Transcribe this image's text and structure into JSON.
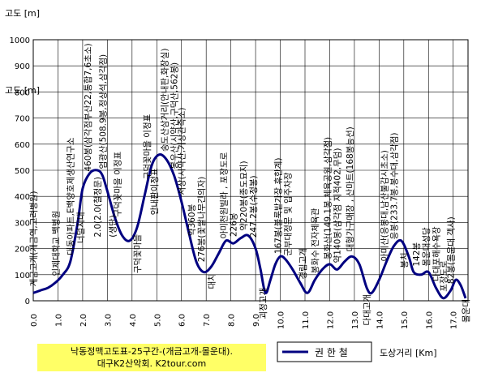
{
  "chart_data": {
    "type": "line",
    "title": "",
    "ylabel": "고도 [m]",
    "xlabel": "도상거리 [Km]",
    "ylim": [
      0,
      1000
    ],
    "yticks": [
      0,
      100,
      200,
      300,
      400,
      500,
      600,
      700,
      800,
      900,
      1000
    ],
    "yticks_text": [
      "0",
      "100",
      "200",
      "300",
      "400",
      "500",
      "600",
      "700",
      "800",
      "900",
      "1000"
    ],
    "xlim": [
      0,
      17.6
    ],
    "xticks": [
      0,
      1,
      2,
      3,
      4,
      5,
      6,
      7,
      8,
      9,
      10,
      11,
      12,
      13,
      14,
      15,
      16,
      17
    ],
    "xticks_text": [
      "0.0",
      "1.0",
      "2.0",
      "3.0",
      "4.0",
      "5.0",
      "6.0",
      "7.0",
      "8.0",
      "9.0",
      "10.0",
      "11.0",
      "12.0",
      "13.0",
      "14.0",
      "15.0",
      "16.0",
      "17.0"
    ],
    "grid": true,
    "line_color": "#000080",
    "series": [
      {
        "name": "권 한 철",
        "x": [
          0.0,
          0.3,
          0.6,
          0.9,
          1.2,
          1.5,
          1.8,
          2.0,
          2.3,
          2.6,
          2.8,
          3.0,
          3.3,
          3.6,
          3.9,
          4.2,
          4.5,
          4.8,
          5.1,
          5.4,
          5.7,
          6.0,
          6.3,
          6.6,
          6.9,
          7.2,
          7.5,
          7.8,
          8.1,
          8.4,
          8.7,
          9.0,
          9.2,
          9.4,
          9.6,
          9.8,
          10.0,
          10.2,
          10.5,
          10.8,
          11.1,
          11.4,
          11.7,
          12.0,
          12.3,
          12.6,
          12.9,
          13.2,
          13.5,
          13.7,
          14.0,
          14.3,
          14.6,
          14.9,
          15.2,
          15.4,
          15.7,
          16.0,
          16.3,
          16.6,
          16.9,
          17.1,
          17.3,
          17.5
        ],
        "y": [
          30,
          40,
          50,
          70,
          100,
          150,
          300,
          430,
          490,
          500,
          480,
          420,
          320,
          250,
          230,
          280,
          400,
          520,
          560,
          540,
          480,
          380,
          260,
          150,
          110,
          130,
          180,
          230,
          220,
          240,
          250,
          200,
          120,
          30,
          80,
          140,
          170,
          160,
          120,
          70,
          30,
          80,
          120,
          140,
          120,
          150,
          170,
          140,
          50,
          30,
          80,
          150,
          210,
          230,
          170,
          110,
          100,
          110,
          50,
          10,
          40,
          80,
          60,
          10
        ]
      }
    ],
    "legend": {
      "placement": "bottom-right"
    },
    "annotations": [
      {
        "x": 0.0,
        "text": "계금고개(개금역,고려병원)",
        "side": "up"
      },
      {
        "x": 0.9,
        "text": "인제대학교 백병원",
        "side": "up"
      },
      {
        "x": 1.5,
        "text": "대동아파트,E백양호제생산연구소",
        "side": "up"
      },
      {
        "x": 1.9,
        "text": "너덜지대",
        "side": "down"
      },
      {
        "x": 2.2,
        "text": "460봉(삼각점부산22,통합7,6초소)",
        "side": "up"
      },
      {
        "x": 2.6,
        "text": "2.0(2.0(철정문)",
        "side": "down"
      },
      {
        "x": 2.8,
        "text": "엄광산(508.9봉,정상석,삼각점)",
        "side": "up"
      },
      {
        "x": 3.2,
        "text": "(생단)",
        "side": "down"
      },
      {
        "x": 3.4,
        "text": "구덕꽃마을 이정표",
        "side": "up"
      },
      {
        "x": 4.2,
        "text": "구덕꽃마을",
        "side": "down"
      },
      {
        "x": 4.6,
        "text": "구덕꽃마을 이정표",
        "side": "up"
      },
      {
        "x": 4.9,
        "text": "안내판이정표",
        "side": "down"
      },
      {
        "x": 5.3,
        "text": "송도산삼거리(안내판,화장실)",
        "side": "up"
      },
      {
        "x": 5.7,
        "text": "봉우산(시약산,구덕산,562봉)",
        "side": "up"
      },
      {
        "x": 6.0,
        "text": "서상(시약산,기상관측소)",
        "side": "up"
      },
      {
        "x": 6.4,
        "text": "약360봉",
        "side": "up"
      },
      {
        "x": 6.8,
        "text": "276봉(꽃쌀나무긴의자)",
        "side": "up"
      },
      {
        "x": 7.2,
        "text": "대치",
        "side": "down"
      },
      {
        "x": 7.7,
        "text": "아미천원빌라 , 포장도로",
        "side": "up"
      },
      {
        "x": 8.1,
        "text": "226봉",
        "side": "up"
      },
      {
        "x": 8.5,
        "text": "약220봉(종도묘지)",
        "side": "up"
      },
      {
        "x": 8.9,
        "text": "247.2봉(수정봉)",
        "side": "up"
      },
      {
        "x": 9.3,
        "text": "괴정고개",
        "side": "down"
      },
      {
        "x": 9.9,
        "text": "167봉(불룩밭가장 휴한계)",
        "side": "up"
      },
      {
        "x": 10.3,
        "text": "군부대정문 및 입주차장",
        "side": "up"
      },
      {
        "x": 10.9,
        "text": "경림고개",
        "side": "up"
      },
      {
        "x": 11.4,
        "text": "봉화수 전자체육관",
        "side": "up"
      },
      {
        "x": 11.9,
        "text": "봉화산(149.1봉,체육공원,삼각점)",
        "side": "up"
      },
      {
        "x": 12.3,
        "text": "약140봉(삼각점 지적402,무덤)",
        "side": "up"
      },
      {
        "x": 12.8,
        "text": "대형가구매장 , 산마트(168봉능선)",
        "side": "up"
      },
      {
        "x": 13.5,
        "text": "다대고개",
        "side": "down"
      },
      {
        "x": 14.2,
        "text": "아미산(응봉대,남산불감시초소)",
        "side": "up"
      },
      {
        "x": 14.6,
        "text": "응봉(233.7봉,봉수대,삼각점)",
        "side": "up"
      },
      {
        "x": 15.0,
        "text": "봉치",
        "side": "down"
      },
      {
        "x": 15.5,
        "text": "142봉",
        "side": "up"
      },
      {
        "x": 15.9,
        "text": "몰운대성당",
        "side": "up"
      },
      {
        "x": 16.3,
        "text": "다대포해수욕장",
        "side": "up"
      },
      {
        "x": 16.6,
        "text": "포장도로",
        "side": "up"
      },
      {
        "x": 16.9,
        "text": "82봉(몰운대 객사)",
        "side": "up"
      },
      {
        "x": 17.5,
        "text": "몰운대",
        "side": "down"
      }
    ],
    "footer": {
      "line1": "낙동정맥고도표-25구간-(개금고개-몰운대).",
      "line2": "대구K2산악회. K2tour.com"
    }
  }
}
